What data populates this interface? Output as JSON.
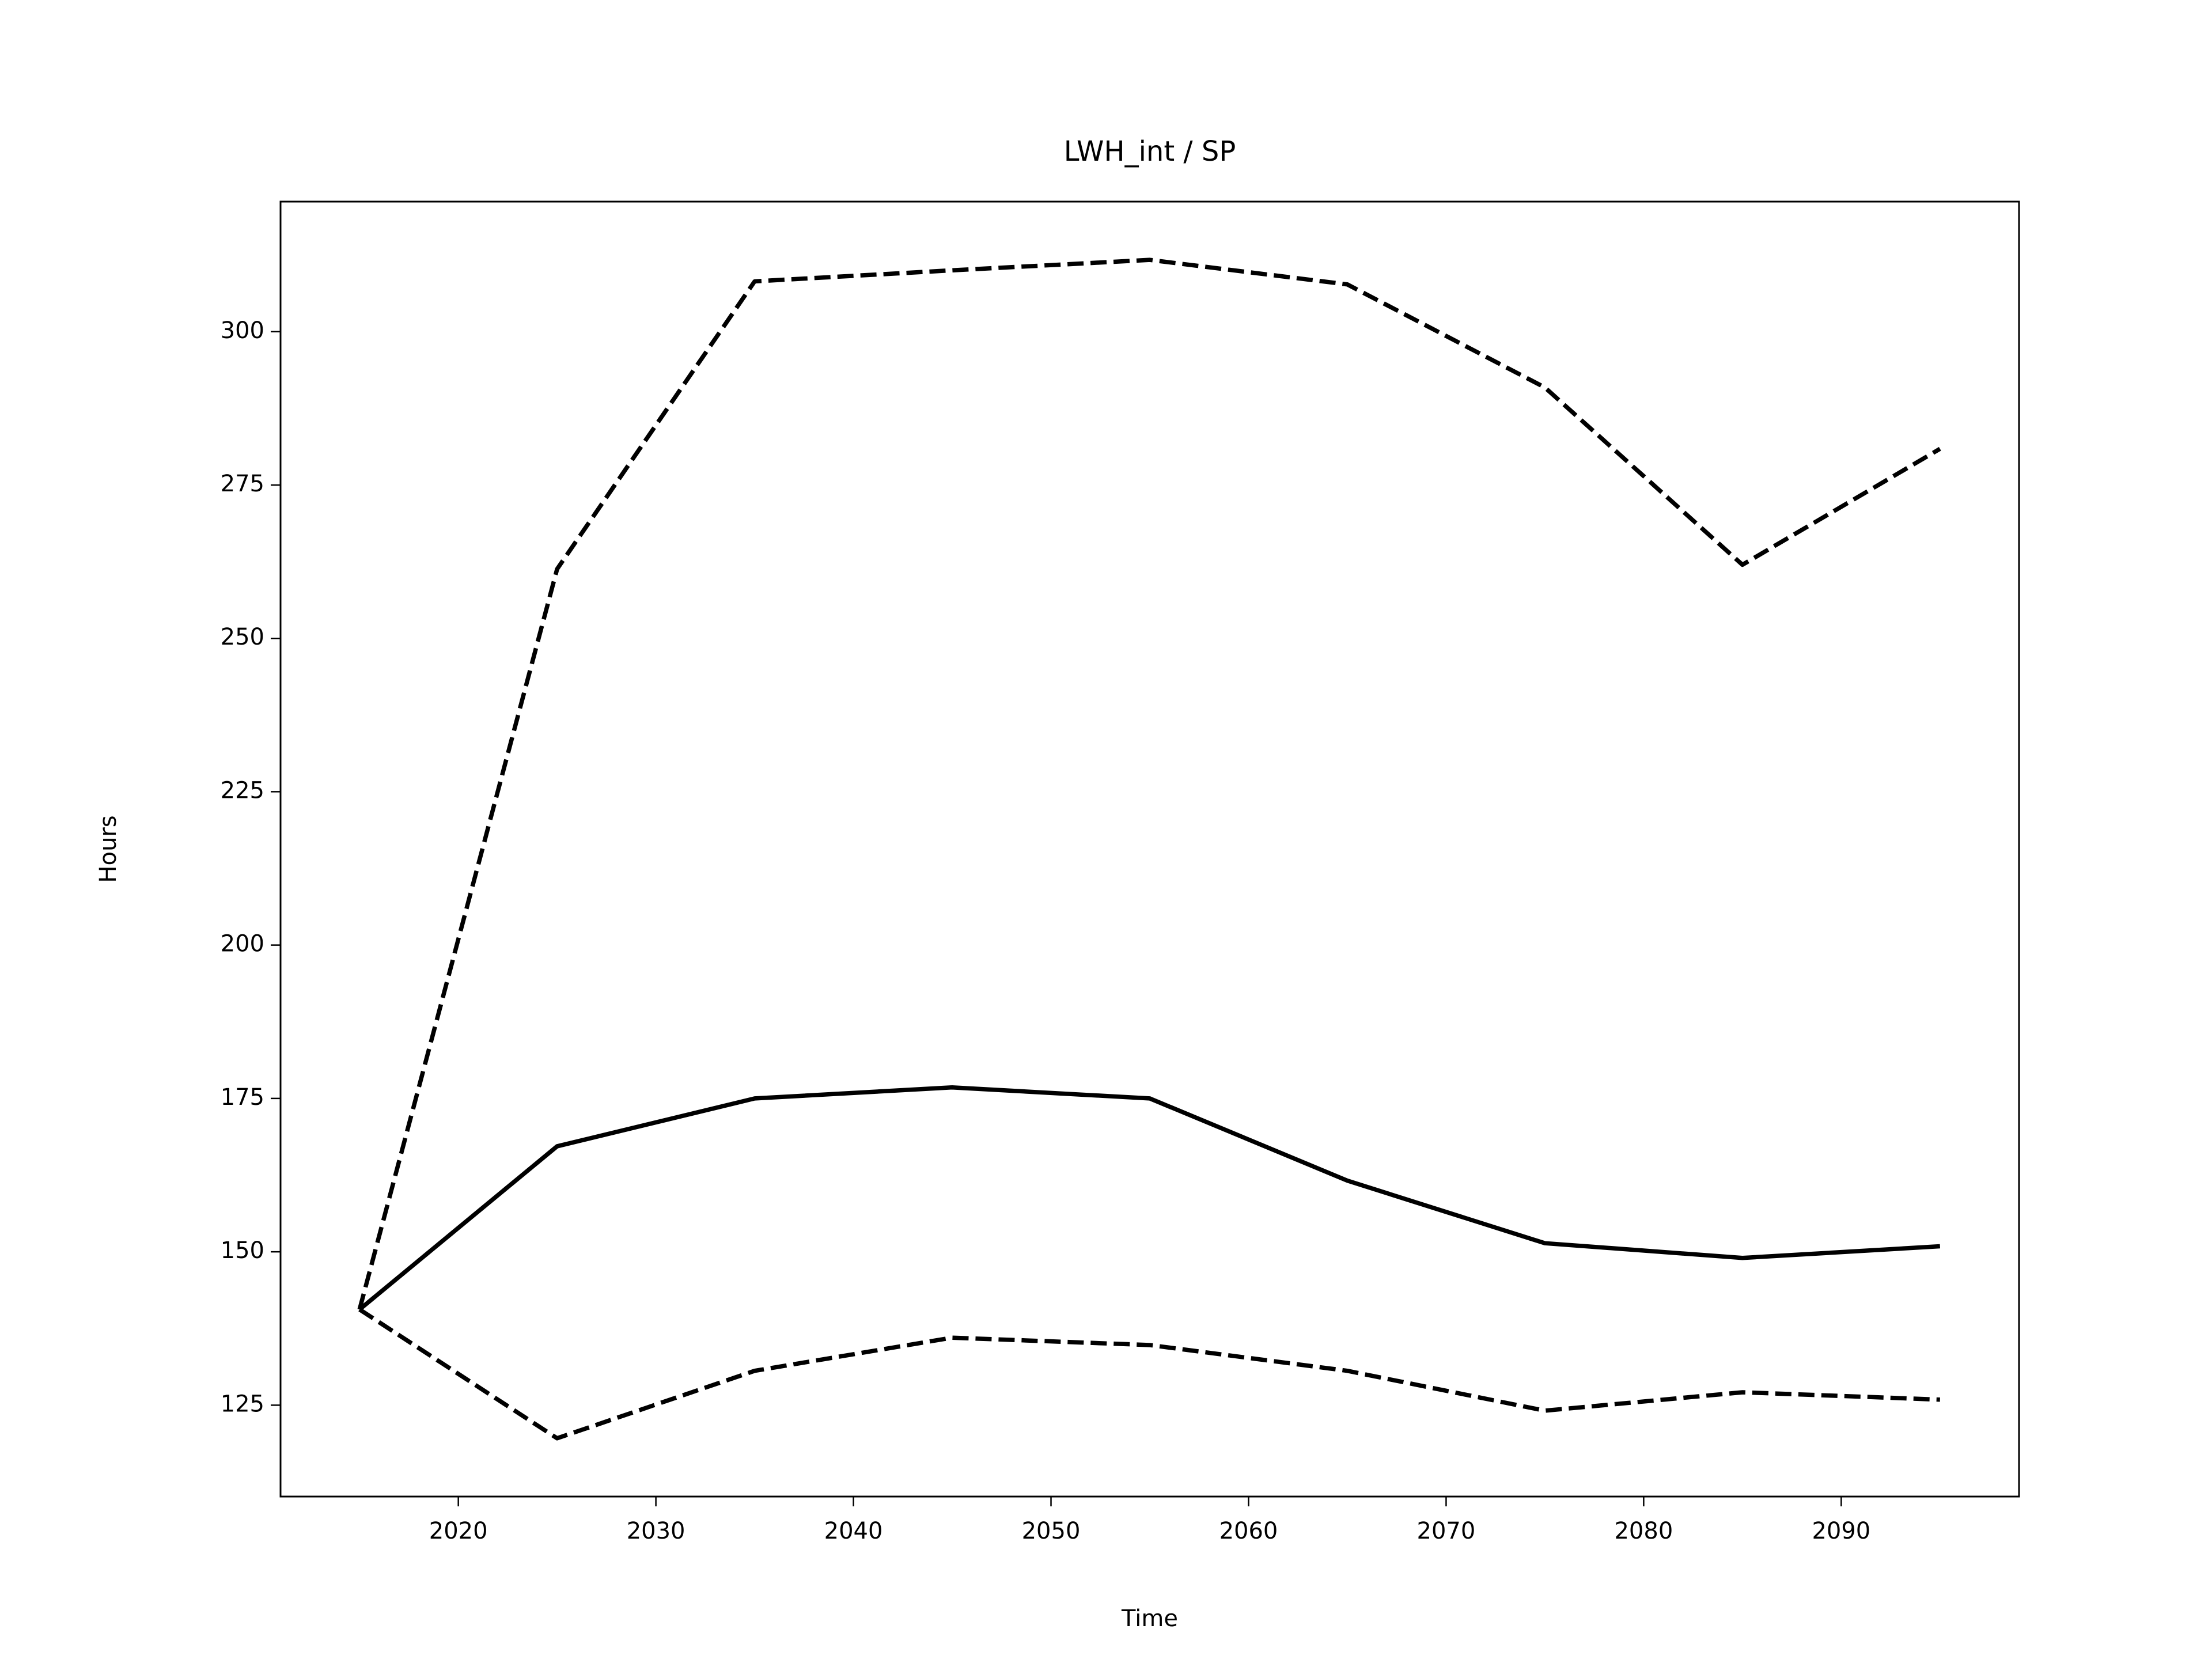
{
  "chart_data": {
    "type": "line",
    "title": "LWH_int / SP",
    "x_label": "Time",
    "y_label": "Hours",
    "x": [
      2015,
      2025,
      2035,
      2045,
      2055,
      2065,
      2075,
      2085,
      2095
    ],
    "series": [
      {
        "color": "#000000",
        "linestyle": "solid",
        "values": [
          140.6,
          167.2,
          175,
          176.8,
          175,
          161.6,
          151.4,
          149,
          150.9
        ]
      },
      {
        "color": "#000000",
        "linestyle": "dashed",
        "values": [
          140.6,
          261.3,
          308.2,
          310,
          311.7,
          307.7,
          290.9,
          262,
          280.9
        ]
      },
      {
        "color": "#000000",
        "linestyle": "dashed",
        "values": [
          140.6,
          119.6,
          130.6,
          136,
          134.8,
          130.6,
          124.1,
          127.1,
          125.9
        ]
      }
    ],
    "xlim": [
      2011,
      2099
    ],
    "xticks": [
      2020,
      2030,
      2040,
      2050,
      2060,
      2070,
      2080,
      2090
    ],
    "ylim": [
      110.1,
      321.2
    ],
    "yticks": [
      125,
      150,
      175,
      200,
      225,
      250,
      275,
      300
    ],
    "grid": false
  }
}
